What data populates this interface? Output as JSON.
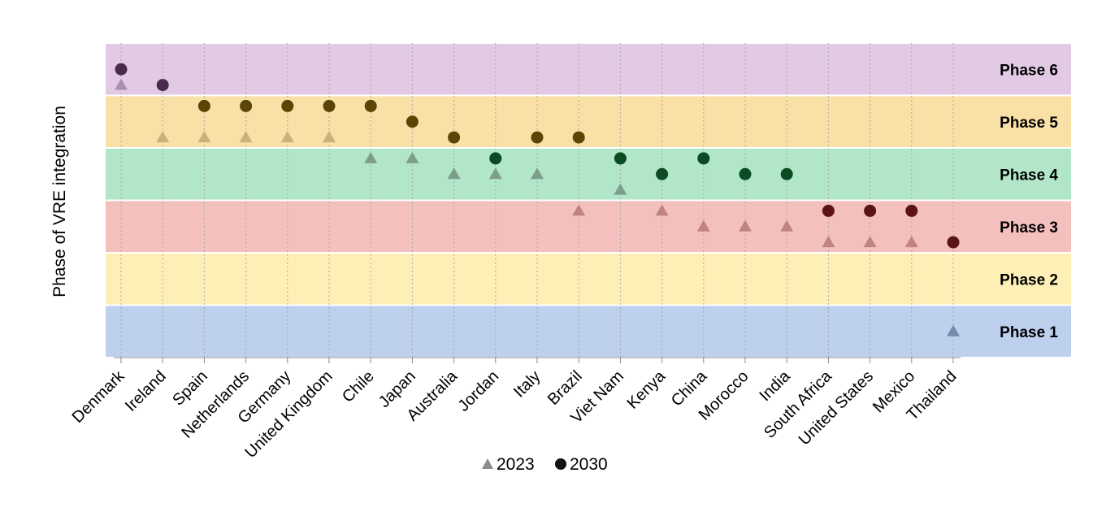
{
  "chart_data": {
    "type": "scatter",
    "ylabel": "Phase of VRE integration",
    "categories": [
      "Denmark",
      "Ireland",
      "Spain",
      "Netherlands",
      "Germany",
      "United Kingdom",
      "Chile",
      "Japan",
      "Australia",
      "Jordan",
      "Italy",
      "Brazil",
      "Viet Nam",
      "Kenya",
      "China",
      "Morocco",
      "India",
      "South Africa",
      "United States",
      "Mexico",
      "Thailand"
    ],
    "phases": [
      {
        "label": "Phase 1",
        "color": "#bdd0ee"
      },
      {
        "label": "Phase 2",
        "color": "#fdefb5"
      },
      {
        "label": "Phase 3",
        "color": "#f4c0bd"
      },
      {
        "label": "Phase 4",
        "color": "#b1e6c9"
      },
      {
        "label": "Phase 5",
        "color": "#f8e0a6"
      },
      {
        "label": "Phase 6",
        "color": "#e2cae4"
      }
    ],
    "ylim": [
      0,
      6
    ],
    "series": [
      {
        "name": "2023",
        "marker": "triangle",
        "values": [
          5.2,
          4.2,
          4.2,
          4.2,
          4.2,
          4.2,
          3.8,
          3.8,
          3.5,
          3.5,
          3.5,
          2.8,
          3.2,
          2.8,
          2.5,
          2.5,
          2.5,
          2.2,
          2.2,
          2.2,
          0.5
        ]
      },
      {
        "name": "2030",
        "marker": "circle",
        "values": [
          5.5,
          5.2,
          4.8,
          4.8,
          4.8,
          4.8,
          4.8,
          4.5,
          4.2,
          3.8,
          4.2,
          4.2,
          3.8,
          3.5,
          3.8,
          3.5,
          3.5,
          2.8,
          2.8,
          2.8,
          2.2
        ]
      }
    ],
    "grid": "vertical dotted",
    "legend_position": "bottom-center"
  }
}
